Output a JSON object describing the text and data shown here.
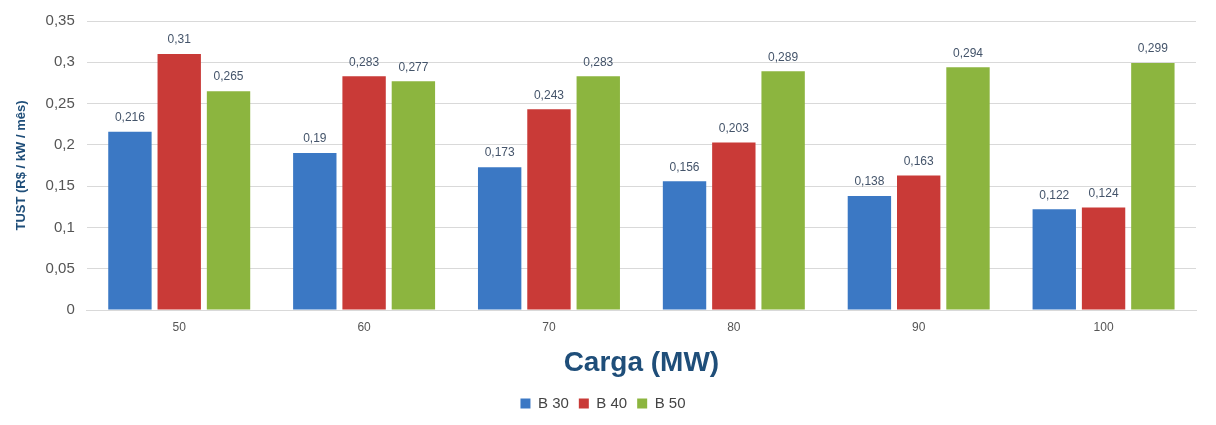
{
  "chart_data": {
    "type": "bar",
    "xlabel": "Carga (MW)",
    "ylabel": "TUST (R$ / kW / mês)",
    "categories": [
      "50",
      "60",
      "70",
      "80",
      "90",
      "100"
    ],
    "series": [
      {
        "name": "B 30",
        "color": "#3b78c4",
        "values": [
          0.216,
          0.19,
          0.173,
          0.156,
          0.138,
          0.122
        ],
        "value_labels": [
          "0,216",
          "0,19",
          "0,173",
          "0,156",
          "0,138",
          "0,122"
        ]
      },
      {
        "name": "B 40",
        "color": "#c93a37",
        "values": [
          0.31,
          0.283,
          0.243,
          0.203,
          0.163,
          0.124
        ],
        "value_labels": [
          "0,31",
          "0,283",
          "0,243",
          "0,203",
          "0,163",
          "0,124"
        ]
      },
      {
        "name": "B 50",
        "color": "#8cb53f",
        "values": [
          0.265,
          0.277,
          0.283,
          0.289,
          0.294,
          0.299
        ],
        "value_labels": [
          "0,265",
          "0,277",
          "0,283",
          "0,289",
          "0,294",
          "0,299"
        ]
      }
    ],
    "ylim": [
      0,
      0.35
    ],
    "yticks": [
      0,
      {
        "value": 0.05,
        "label": "0,05"
      },
      {
        "value": 0.1,
        "label": "0,1"
      },
      {
        "value": 0.15,
        "label": "0,15"
      },
      {
        "value": 0.2,
        "label": "0,2"
      },
      {
        "value": 0.25,
        "label": "0,25"
      },
      {
        "value": 0.3,
        "label": "0,3"
      },
      {
        "value": 0.35,
        "label": "0,35"
      }
    ],
    "grid": "y",
    "legend": "bottom"
  }
}
